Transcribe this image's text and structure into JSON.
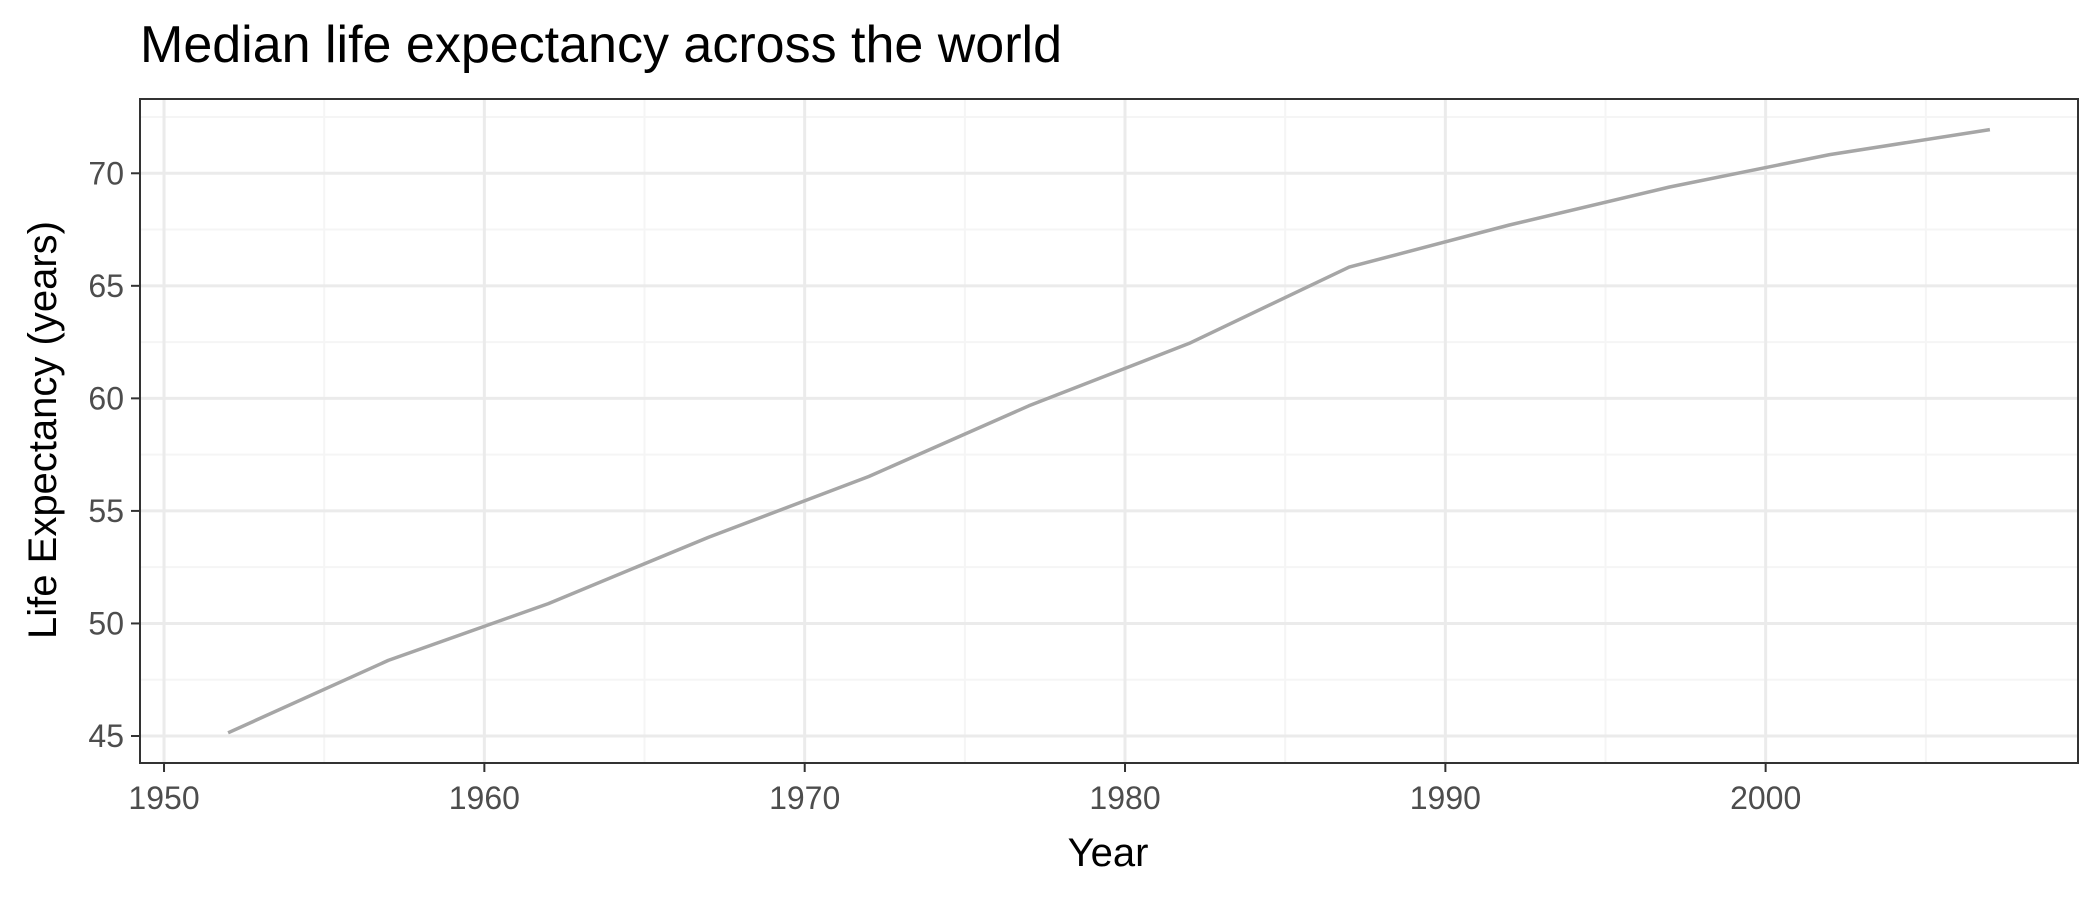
{
  "chart_data": {
    "type": "line",
    "title": "Median life expectancy across the world",
    "xlabel": "Year",
    "ylabel": "Life Expectancy (years)",
    "xlim": [
      1949.25,
      2009.75
    ],
    "ylim": [
      43.8,
      73.3
    ],
    "x_ticks": [
      1950,
      1960,
      1970,
      1980,
      1990,
      2000
    ],
    "y_ticks": [
      45,
      50,
      55,
      60,
      65,
      70
    ],
    "grid": true,
    "legend": "none",
    "colors": {
      "line": "#a6a6a6",
      "grid_major": "#ebebeb",
      "grid_minor": "#f5f5f5",
      "panel_border": "#333333"
    },
    "series": [
      {
        "x": [
          1952,
          1957,
          1962,
          1967,
          1972,
          1977,
          1982,
          1987,
          1992,
          1997,
          2002,
          2007
        ],
        "y": [
          45.14,
          48.36,
          50.88,
          53.83,
          56.53,
          59.67,
          62.44,
          65.83,
          67.7,
          69.39,
          70.83,
          71.94
        ]
      }
    ]
  }
}
